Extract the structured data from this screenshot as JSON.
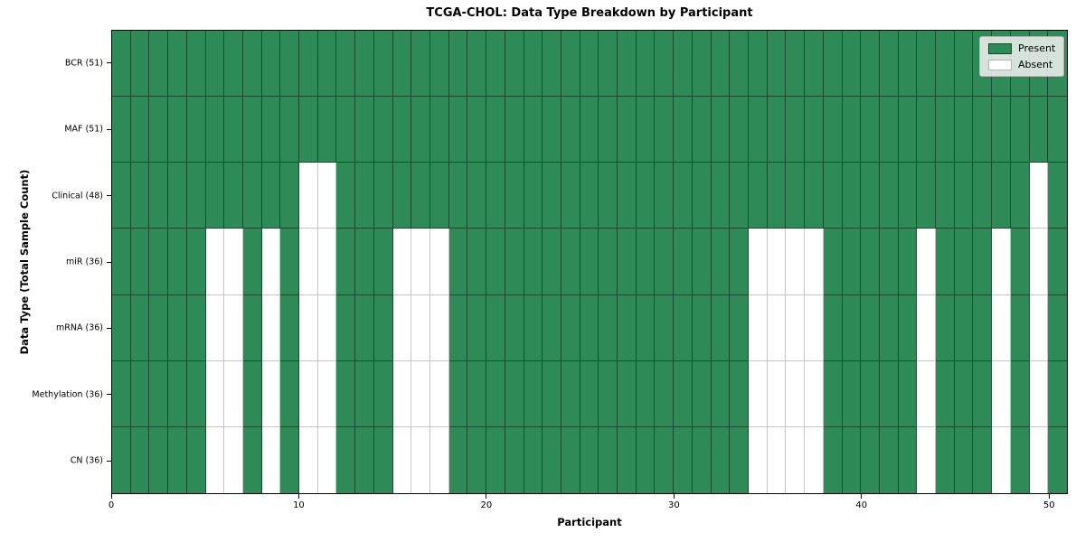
{
  "chart_data": {
    "type": "heatmap",
    "title": "TCGA-CHOL: Data Type Breakdown by Participant",
    "xlabel": "Participant",
    "ylabel": "Data Type (Total Sample Count)",
    "n_participants": 51,
    "x_ticks": [
      0,
      10,
      20,
      30,
      40,
      50
    ],
    "xlim": [
      0,
      51
    ],
    "grid": "cell-borders",
    "legend_position": "upper-right-inside",
    "colors": {
      "present": "#2e8b57",
      "absent": "#ffffff"
    },
    "legend": [
      {
        "label": "Present",
        "color": "#2e8b57"
      },
      {
        "label": "Absent",
        "color": "#ffffff"
      }
    ],
    "rows": [
      {
        "label": "BCR (51)",
        "total": 51,
        "absent_participants": []
      },
      {
        "label": "MAF (51)",
        "total": 51,
        "absent_participants": []
      },
      {
        "label": "Clinical (48)",
        "total": 48,
        "absent_participants": [
          10,
          11,
          49
        ]
      },
      {
        "label": "miR (36)",
        "total": 36,
        "absent_participants": [
          5,
          6,
          8,
          10,
          11,
          15,
          16,
          17,
          34,
          35,
          36,
          37,
          43,
          47,
          49
        ]
      },
      {
        "label": "mRNA (36)",
        "total": 36,
        "absent_participants": [
          5,
          6,
          8,
          10,
          11,
          15,
          16,
          17,
          34,
          35,
          36,
          37,
          43,
          47,
          49
        ]
      },
      {
        "label": "Methylation (36)",
        "total": 36,
        "absent_participants": [
          5,
          6,
          8,
          10,
          11,
          15,
          16,
          17,
          34,
          35,
          36,
          37,
          43,
          47,
          49
        ]
      },
      {
        "label": "CN (36)",
        "total": 36,
        "absent_participants": [
          5,
          6,
          8,
          10,
          11,
          15,
          16,
          17,
          34,
          35,
          36,
          37,
          43,
          47,
          49
        ]
      }
    ]
  }
}
